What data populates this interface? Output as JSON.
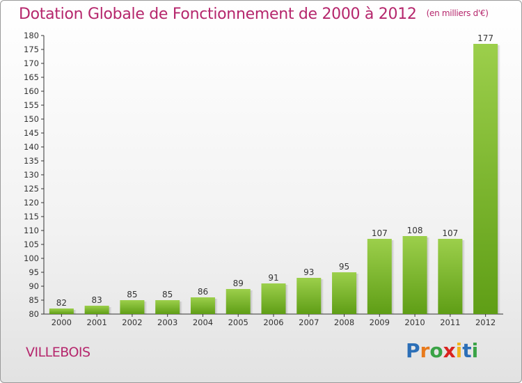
{
  "header": {
    "title": "Dotation Globale de Fonctionnement de 2000 à 2012",
    "unit": "(en milliers d'€)"
  },
  "footer": {
    "commune": "VILLEBOIS",
    "logo_letters": [
      "P",
      "r",
      "o",
      "x",
      "i",
      "t",
      "i"
    ]
  },
  "chart_data": {
    "type": "bar",
    "title": "Dotation Globale de Fonctionnement de 2000 à 2012",
    "subtitle": "(en milliers d'€)",
    "categories": [
      "2000",
      "2001",
      "2002",
      "2003",
      "2004",
      "2005",
      "2006",
      "2007",
      "2008",
      "2009",
      "2010",
      "2011",
      "2012"
    ],
    "values": [
      82,
      83,
      85,
      85,
      86,
      89,
      91,
      93,
      95,
      107,
      108,
      107,
      177
    ],
    "ylim": [
      80,
      180
    ],
    "ytick_step": 5,
    "grid": false,
    "colors": {
      "bar_top": "#9ccf4b",
      "bar_bottom": "#5f9e16",
      "text": "#333333",
      "title": "#b5266c"
    }
  }
}
